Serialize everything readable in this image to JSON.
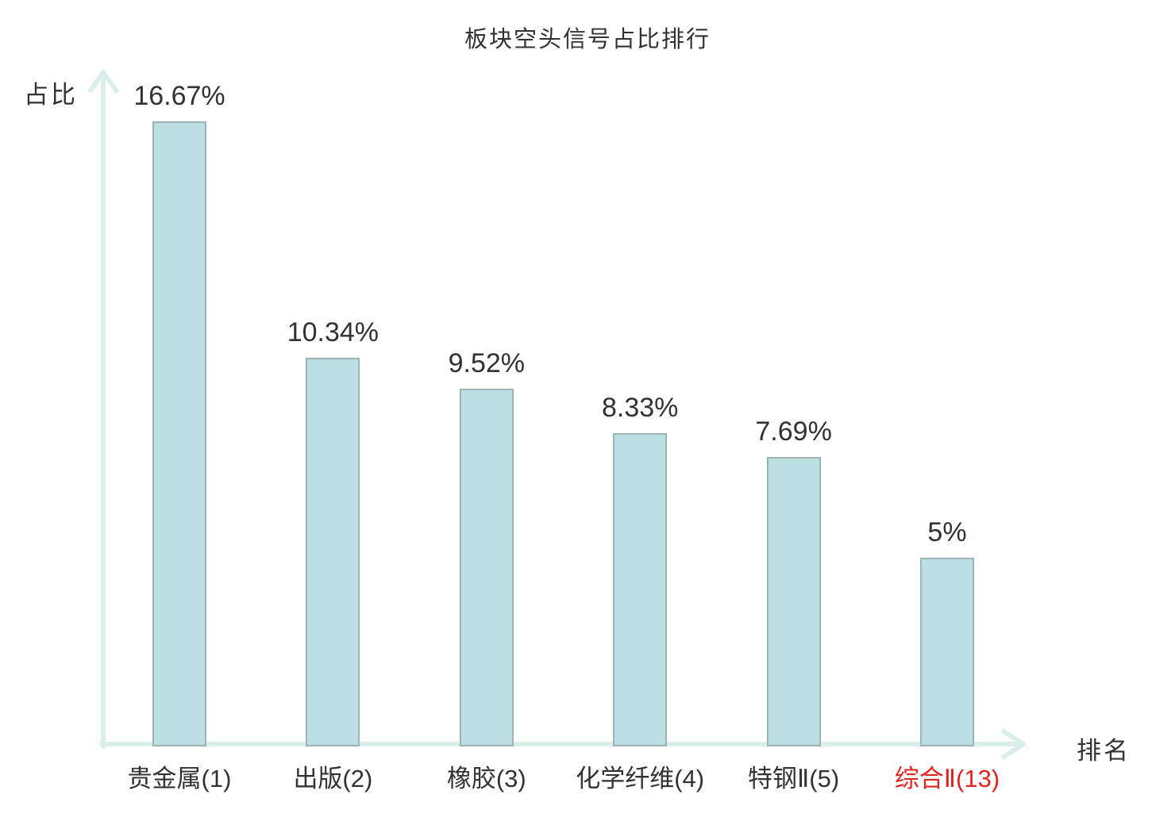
{
  "page": {
    "background": "#ffffff"
  },
  "chart_data": {
    "type": "bar",
    "title": "板块空头信号占比排行",
    "xlabel": "排名",
    "ylabel": "占比",
    "categories": [
      "贵金属(1)",
      "出版(2)",
      "橡胶(3)",
      "化学纤维(4)",
      "特钢Ⅱ(5)",
      "综合Ⅱ(13)"
    ],
    "values": [
      16.67,
      10.34,
      9.52,
      8.33,
      7.69,
      5
    ],
    "value_labels": [
      "16.67%",
      "10.34%",
      "9.52%",
      "8.33%",
      "7.69%",
      "5%"
    ],
    "highlight_index": 5,
    "ylim": [
      0,
      18
    ],
    "grid": false,
    "legend": false,
    "colors": {
      "bar_fill": "#bcdfe2",
      "bar_border": "#9fb3b6",
      "axis": "#dceee9",
      "text": "#323232",
      "highlight": "#e02420"
    }
  }
}
